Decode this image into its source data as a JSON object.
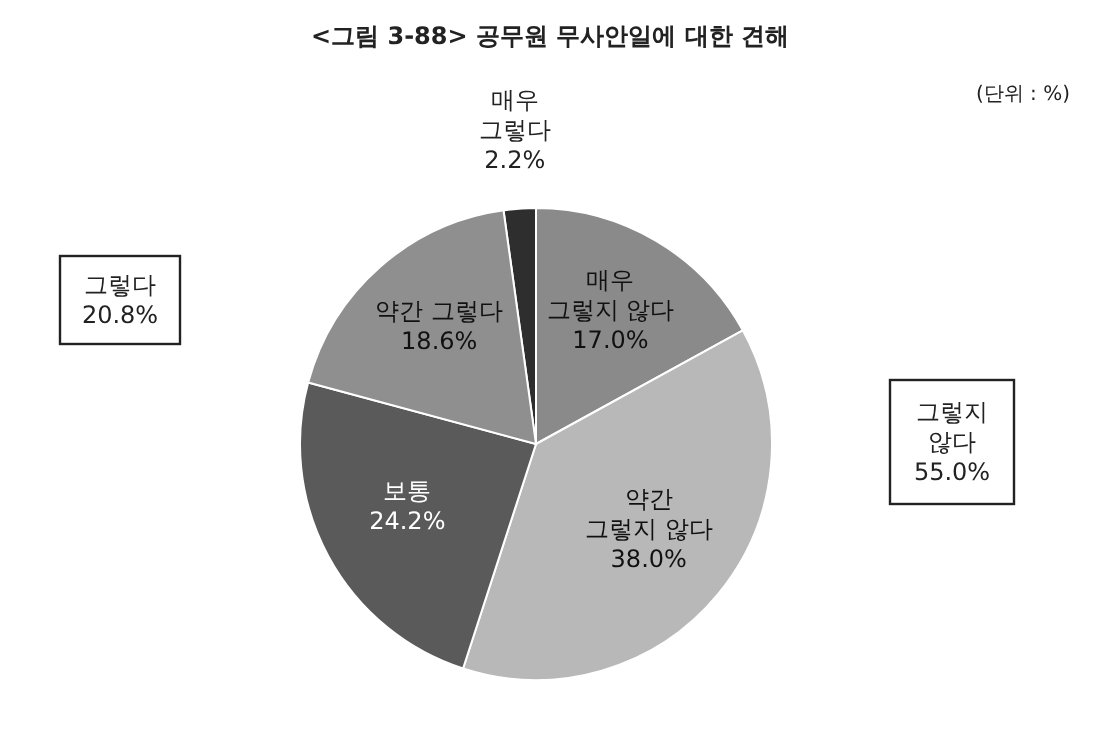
{
  "chart_data": {
    "type": "pie",
    "title": "<그림 3-88> 공무원 무사안일에 대한 견해",
    "categories": [
      "매우\n그렇다",
      "매우\n그렇지 않다",
      "약간\n그렇지 않다",
      "보통",
      "약간 그렇다"
    ],
    "values": [
      2.2,
      17.0,
      38.0,
      24.2,
      18.6
    ],
    "colors": [
      "#2e2e2e",
      "#8a8a8a",
      "#b8b8b8",
      "#5a5a5a",
      "#8f8f8f"
    ],
    "value_labels": [
      "2.2%",
      "17.0%",
      "38.0%",
      "24.2%",
      "18.6%"
    ],
    "annotations": [
      "그렇다\n20.8%",
      "그렇지\n않다\n55.0%",
      "(단위 : %)"
    ]
  }
}
